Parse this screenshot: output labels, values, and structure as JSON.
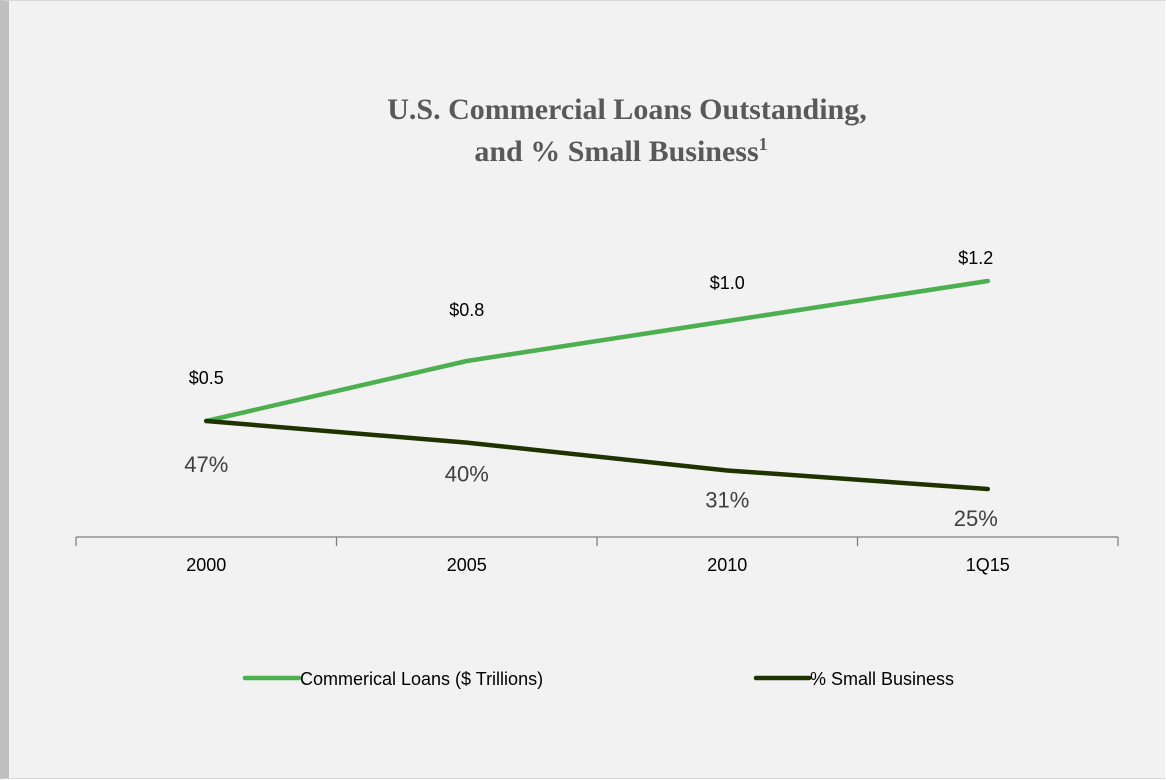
{
  "chart_data": {
    "type": "line",
    "title": "U.S. Commercial Loans Outstanding,",
    "subtitle": "and % Small Business",
    "subtitle_superscript": "1",
    "categories": [
      "2000",
      "2005",
      "2010",
      "1Q15"
    ],
    "series": [
      {
        "name": "Commerical Loans ($ Trillions)",
        "values": [
          0.5,
          0.8,
          1.0,
          1.2
        ],
        "labels": [
          "$0.5",
          "$0.8",
          "$1.0",
          "$1.2"
        ],
        "color": "#4caf50"
      },
      {
        "name": "% Small Business",
        "values": [
          47,
          40,
          31,
          25
        ],
        "labels": [
          "47%",
          "40%",
          "31%",
          "25%"
        ],
        "color": "#1f3300"
      }
    ],
    "legend": "bottom",
    "grid": false
  }
}
